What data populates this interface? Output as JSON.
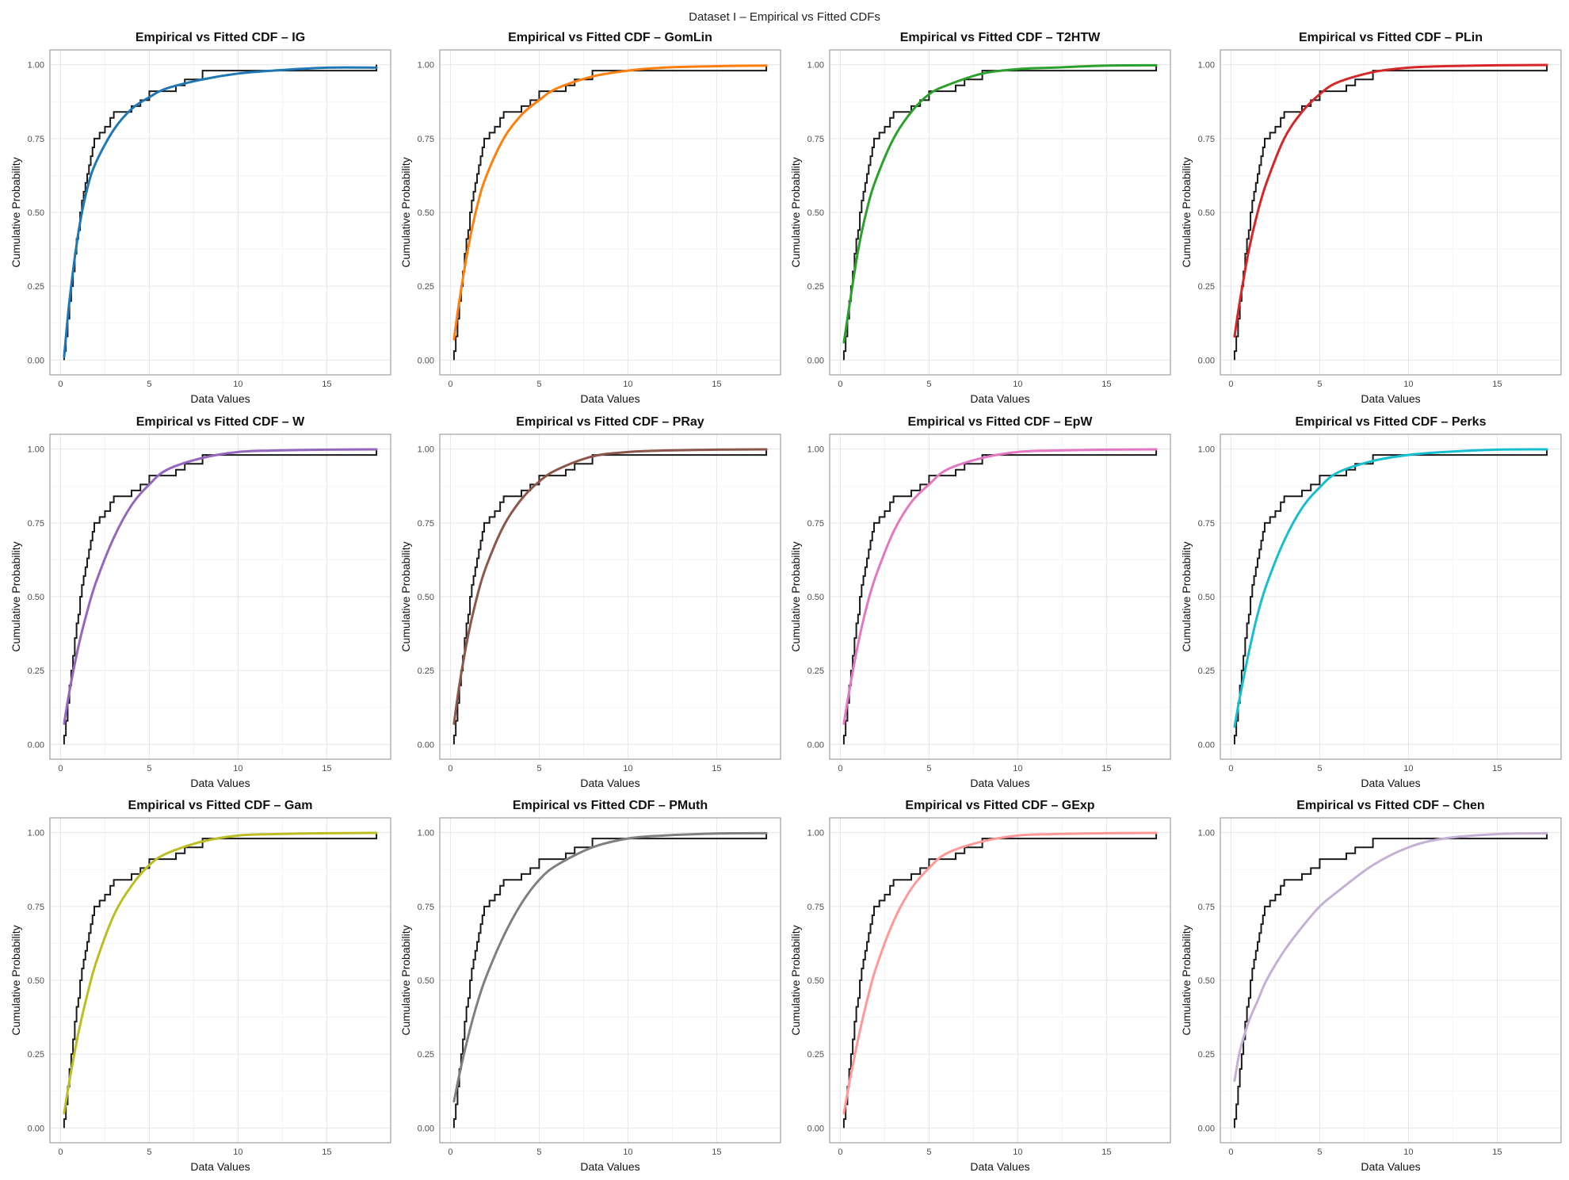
{
  "figure_title": "Dataset I – Empirical vs Fitted CDFs",
  "colors": {
    "ecdf": "#1a1a1a",
    "grid": "#e6e6e6",
    "frame": "#8c8c8c"
  },
  "chart_data": [
    {
      "type": "line",
      "title": "Empirical vs Fitted CDF – IG",
      "xlabel": "Data Values",
      "ylabel": "Cumulative Probability",
      "xlim": [
        -0.6,
        18.6
      ],
      "ylim": [
        -0.05,
        1.05
      ],
      "xticks": [
        0,
        5,
        10,
        15
      ],
      "yticks": [
        0,
        0.25,
        0.5,
        0.75,
        1
      ],
      "ytick_labels": [
        "0.00",
        "0.25",
        "0.50",
        "0.75",
        "1.00"
      ],
      "grid": true,
      "series": [
        {
          "name": "IG",
          "color": "#1f77b4"
        }
      ],
      "fitted_cdf": {
        "x": [
          0.2,
          0.5,
          1,
          1.5,
          2,
          3,
          4,
          5,
          6,
          8,
          10,
          12,
          15,
          17.8
        ],
        "y": [
          0.01,
          0.2,
          0.43,
          0.58,
          0.67,
          0.78,
          0.85,
          0.89,
          0.92,
          0.95,
          0.97,
          0.98,
          0.99,
          0.99
        ]
      }
    },
    {
      "type": "line",
      "title": "Empirical vs Fitted CDF – GomLin",
      "xlabel": "Data Values",
      "ylabel": "Cumulative Probability",
      "xlim": [
        -0.6,
        18.6
      ],
      "ylim": [
        -0.05,
        1.05
      ],
      "xticks": [
        0,
        5,
        10,
        15
      ],
      "yticks": [
        0,
        0.25,
        0.5,
        0.75,
        1
      ],
      "ytick_labels": [
        "0.00",
        "0.25",
        "0.50",
        "0.75",
        "1.00"
      ],
      "grid": true,
      "series": [
        {
          "name": "GomLin",
          "color": "#ff7f0e"
        }
      ],
      "fitted_cdf": {
        "x": [
          0.2,
          0.5,
          1,
          1.5,
          2,
          3,
          4,
          5,
          6,
          8,
          10,
          12,
          15,
          17.8
        ],
        "y": [
          0.07,
          0.2,
          0.38,
          0.52,
          0.62,
          0.75,
          0.83,
          0.88,
          0.92,
          0.96,
          0.98,
          0.99,
          0.995,
          0.997
        ]
      }
    },
    {
      "type": "line",
      "title": "Empirical vs Fitted CDF – T2HTW",
      "xlabel": "Data Values",
      "ylabel": "Cumulative Probability",
      "xlim": [
        -0.6,
        18.6
      ],
      "ylim": [
        -0.05,
        1.05
      ],
      "xticks": [
        0,
        5,
        10,
        15
      ],
      "yticks": [
        0,
        0.25,
        0.5,
        0.75,
        1
      ],
      "ytick_labels": [
        "0.00",
        "0.25",
        "0.50",
        "0.75",
        "1.00"
      ],
      "grid": true,
      "series": [
        {
          "name": "T2HTW",
          "color": "#2ca02c"
        }
      ],
      "fitted_cdf": {
        "x": [
          0.2,
          0.5,
          1,
          1.5,
          2,
          3,
          4,
          5,
          6,
          8,
          10,
          12,
          15,
          17.8
        ],
        "y": [
          0.06,
          0.18,
          0.37,
          0.51,
          0.61,
          0.75,
          0.84,
          0.9,
          0.93,
          0.97,
          0.985,
          0.99,
          0.997,
          0.998
        ]
      }
    },
    {
      "type": "line",
      "title": "Empirical vs Fitted CDF – PLin",
      "xlabel": "Data Values",
      "ylabel": "Cumulative Probability",
      "xlim": [
        -0.6,
        18.6
      ],
      "ylim": [
        -0.05,
        1.05
      ],
      "xticks": [
        0,
        5,
        10,
        15
      ],
      "yticks": [
        0,
        0.25,
        0.5,
        0.75,
        1
      ],
      "ytick_labels": [
        "0.00",
        "0.25",
        "0.50",
        "0.75",
        "1.00"
      ],
      "grid": true,
      "series": [
        {
          "name": "PLin",
          "color": "#d62728"
        }
      ],
      "fitted_cdf": {
        "x": [
          0.2,
          0.5,
          1,
          1.5,
          2,
          3,
          4,
          5,
          6,
          8,
          10,
          12,
          15,
          17.8
        ],
        "y": [
          0.08,
          0.2,
          0.37,
          0.5,
          0.6,
          0.75,
          0.84,
          0.9,
          0.94,
          0.975,
          0.99,
          0.995,
          0.998,
          0.999
        ]
      }
    },
    {
      "type": "line",
      "title": "Empirical vs Fitted CDF – W",
      "xlabel": "Data Values",
      "ylabel": "Cumulative Probability",
      "xlim": [
        -0.6,
        18.6
      ],
      "ylim": [
        -0.05,
        1.05
      ],
      "xticks": [
        0,
        5,
        10,
        15
      ],
      "yticks": [
        0,
        0.25,
        0.5,
        0.75,
        1
      ],
      "ytick_labels": [
        "0.00",
        "0.25",
        "0.50",
        "0.75",
        "1.00"
      ],
      "grid": true,
      "series": [
        {
          "name": "W",
          "color": "#9467bd"
        }
      ],
      "fitted_cdf": {
        "x": [
          0.2,
          0.5,
          1,
          1.5,
          2,
          3,
          4,
          5,
          6,
          8,
          10,
          12,
          15,
          17.8
        ],
        "y": [
          0.07,
          0.18,
          0.33,
          0.45,
          0.55,
          0.7,
          0.81,
          0.88,
          0.93,
          0.97,
          0.99,
          0.995,
          0.998,
          0.999
        ]
      }
    },
    {
      "type": "line",
      "title": "Empirical vs Fitted CDF – PRay",
      "xlabel": "Data Values",
      "ylabel": "Cumulative Probability",
      "xlim": [
        -0.6,
        18.6
      ],
      "ylim": [
        -0.05,
        1.05
      ],
      "xticks": [
        0,
        5,
        10,
        15
      ],
      "yticks": [
        0,
        0.25,
        0.5,
        0.75,
        1
      ],
      "ytick_labels": [
        "0.00",
        "0.25",
        "0.50",
        "0.75",
        "1.00"
      ],
      "grid": true,
      "series": [
        {
          "name": "PRay",
          "color": "#8c564b"
        }
      ],
      "fitted_cdf": {
        "x": [
          0.2,
          0.5,
          1,
          1.5,
          2,
          3,
          4,
          5,
          6,
          8,
          10,
          12,
          15,
          17.8
        ],
        "y": [
          0.07,
          0.2,
          0.37,
          0.5,
          0.6,
          0.74,
          0.83,
          0.89,
          0.93,
          0.975,
          0.99,
          0.995,
          0.998,
          0.999
        ]
      }
    },
    {
      "type": "line",
      "title": "Empirical vs Fitted CDF – EpW",
      "xlabel": "Data Values",
      "ylabel": "Cumulative Probability",
      "xlim": [
        -0.6,
        18.6
      ],
      "ylim": [
        -0.05,
        1.05
      ],
      "xticks": [
        0,
        5,
        10,
        15
      ],
      "yticks": [
        0,
        0.25,
        0.5,
        0.75,
        1
      ],
      "ytick_labels": [
        "0.00",
        "0.25",
        "0.50",
        "0.75",
        "1.00"
      ],
      "grid": true,
      "series": [
        {
          "name": "EpW",
          "color": "#e377c2"
        }
      ],
      "fitted_cdf": {
        "x": [
          0.2,
          0.5,
          1,
          1.5,
          2,
          3,
          4,
          5,
          6,
          8,
          10,
          12,
          15,
          17.8
        ],
        "y": [
          0.07,
          0.18,
          0.34,
          0.47,
          0.57,
          0.72,
          0.82,
          0.88,
          0.93,
          0.97,
          0.99,
          0.995,
          0.998,
          0.999
        ]
      }
    },
    {
      "type": "line",
      "title": "Empirical vs Fitted CDF – Perks",
      "xlabel": "Data Values",
      "ylabel": "Cumulative Probability",
      "xlim": [
        -0.6,
        18.6
      ],
      "ylim": [
        -0.05,
        1.05
      ],
      "xticks": [
        0,
        5,
        10,
        15
      ],
      "yticks": [
        0,
        0.25,
        0.5,
        0.75,
        1
      ],
      "ytick_labels": [
        "0.00",
        "0.25",
        "0.50",
        "0.75",
        "1.00"
      ],
      "grid": true,
      "series": [
        {
          "name": "Perks",
          "color": "#17becf"
        }
      ],
      "fitted_cdf": {
        "x": [
          0.2,
          0.5,
          1,
          1.5,
          2,
          3,
          4,
          5,
          6,
          8,
          10,
          12,
          15,
          17.8
        ],
        "y": [
          0.06,
          0.16,
          0.31,
          0.44,
          0.54,
          0.69,
          0.8,
          0.87,
          0.92,
          0.96,
          0.98,
          0.99,
          0.998,
          0.999
        ]
      }
    },
    {
      "type": "line",
      "title": "Empirical vs Fitted CDF – Gam",
      "xlabel": "Data Values",
      "ylabel": "Cumulative Probability",
      "xlim": [
        -0.6,
        18.6
      ],
      "ylim": [
        -0.05,
        1.05
      ],
      "xticks": [
        0,
        5,
        10,
        15
      ],
      "yticks": [
        0,
        0.25,
        0.5,
        0.75,
        1
      ],
      "ytick_labels": [
        "0.00",
        "0.25",
        "0.50",
        "0.75",
        "1.00"
      ],
      "grid": true,
      "series": [
        {
          "name": "Gam",
          "color": "#bcbd22"
        }
      ],
      "fitted_cdf": {
        "x": [
          0.2,
          0.5,
          1,
          1.5,
          2,
          3,
          4,
          5,
          6,
          8,
          10,
          12,
          15,
          17.8
        ],
        "y": [
          0.05,
          0.16,
          0.32,
          0.45,
          0.56,
          0.72,
          0.82,
          0.89,
          0.93,
          0.97,
          0.99,
          0.995,
          0.998,
          0.999
        ]
      }
    },
    {
      "type": "line",
      "title": "Empirical vs Fitted CDF – PMuth",
      "xlabel": "Data Values",
      "ylabel": "Cumulative Probability",
      "xlim": [
        -0.6,
        18.6
      ],
      "ylim": [
        -0.05,
        1.05
      ],
      "xticks": [
        0,
        5,
        10,
        15
      ],
      "yticks": [
        0,
        0.25,
        0.5,
        0.75,
        1
      ],
      "ytick_labels": [
        "0.00",
        "0.25",
        "0.50",
        "0.75",
        "1.00"
      ],
      "grid": true,
      "series": [
        {
          "name": "PMuth",
          "color": "#7f7f7f"
        }
      ],
      "fitted_cdf": {
        "x": [
          0.2,
          0.5,
          1,
          1.5,
          2,
          3,
          4,
          5,
          6,
          8,
          10,
          12,
          15,
          17.8
        ],
        "y": [
          0.09,
          0.18,
          0.31,
          0.42,
          0.51,
          0.65,
          0.76,
          0.84,
          0.89,
          0.95,
          0.98,
          0.99,
          0.997,
          0.998
        ]
      }
    },
    {
      "type": "line",
      "title": "Empirical vs Fitted CDF – GExp",
      "xlabel": "Data Values",
      "ylabel": "Cumulative Probability",
      "xlim": [
        -0.6,
        18.6
      ],
      "ylim": [
        -0.05,
        1.05
      ],
      "xticks": [
        0,
        5,
        10,
        15
      ],
      "yticks": [
        0,
        0.25,
        0.5,
        0.75,
        1
      ],
      "ytick_labels": [
        "0.00",
        "0.25",
        "0.50",
        "0.75",
        "1.00"
      ],
      "grid": true,
      "series": [
        {
          "name": "GExp",
          "color": "#ff9896"
        }
      ],
      "fitted_cdf": {
        "x": [
          0.2,
          0.5,
          1,
          1.5,
          2,
          3,
          4,
          5,
          6,
          8,
          10,
          12,
          15,
          17.8
        ],
        "y": [
          0.05,
          0.15,
          0.3,
          0.43,
          0.54,
          0.7,
          0.81,
          0.88,
          0.93,
          0.97,
          0.99,
          0.995,
          0.998,
          0.999
        ]
      }
    },
    {
      "type": "line",
      "title": "Empirical vs Fitted CDF – Chen",
      "xlabel": "Data Values",
      "ylabel": "Cumulative Probability",
      "xlim": [
        -0.6,
        18.6
      ],
      "ylim": [
        -0.05,
        1.05
      ],
      "xticks": [
        0,
        5,
        10,
        15
      ],
      "yticks": [
        0,
        0.25,
        0.5,
        0.75,
        1
      ],
      "ytick_labels": [
        "0.00",
        "0.25",
        "0.50",
        "0.75",
        "1.00"
      ],
      "grid": true,
      "series": [
        {
          "name": "Chen",
          "color": "#c5b0d5"
        }
      ],
      "fitted_cdf": {
        "x": [
          0.2,
          0.5,
          1,
          1.5,
          2,
          3,
          4,
          5,
          6,
          8,
          10,
          12,
          15,
          17.8
        ],
        "y": [
          0.16,
          0.26,
          0.36,
          0.43,
          0.5,
          0.6,
          0.68,
          0.75,
          0.8,
          0.89,
          0.95,
          0.98,
          0.995,
          0.998
        ]
      }
    }
  ],
  "empirical_cdf": {
    "x": [
      0.2,
      0.3,
      0.4,
      0.5,
      0.6,
      0.7,
      0.8,
      0.9,
      1.0,
      1.1,
      1.2,
      1.3,
      1.4,
      1.5,
      1.6,
      1.7,
      1.8,
      1.9,
      2.0,
      2.2,
      2.5,
      2.8,
      3.0,
      3.3,
      3.5,
      4.0,
      4.5,
      5.0,
      5.5,
      6.5,
      7.0,
      8.0,
      17.8
    ],
    "y": [
      0.03,
      0.08,
      0.14,
      0.2,
      0.25,
      0.3,
      0.36,
      0.41,
      0.44,
      0.5,
      0.54,
      0.57,
      0.6,
      0.63,
      0.66,
      0.69,
      0.72,
      0.75,
      0.75,
      0.77,
      0.79,
      0.82,
      0.84,
      0.84,
      0.84,
      0.86,
      0.88,
      0.91,
      0.91,
      0.93,
      0.95,
      0.98,
      1.0
    ]
  }
}
